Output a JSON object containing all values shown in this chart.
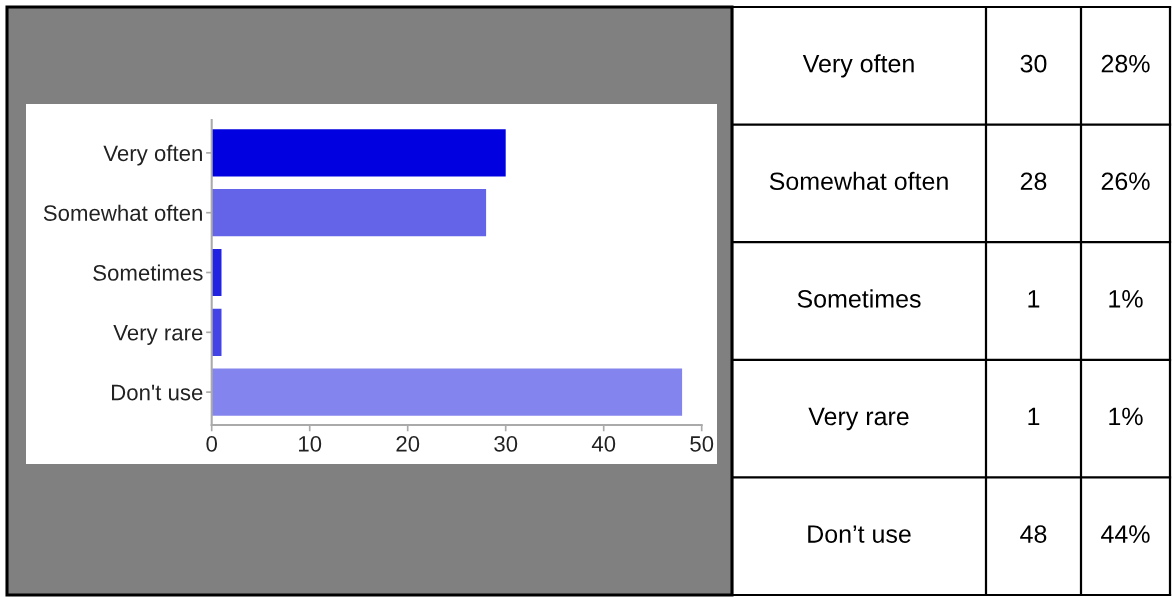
{
  "chart_data": [
    {
      "type": "bar",
      "orientation": "horizontal",
      "categories": [
        "Very often",
        "Somewhat often",
        "Sometimes",
        "Very rare",
        "Don't use"
      ],
      "values": [
        30,
        28,
        1,
        1,
        48
      ],
      "colors": [
        "#0000e0",
        "#6464e8",
        "#2222e2",
        "#4444e6",
        "#8484ee"
      ],
      "xlim": [
        0,
        50
      ],
      "xticks": [
        0,
        10,
        20,
        30,
        40,
        50
      ]
    },
    {
      "type": "other",
      "categories": [
        "Very often",
        "Somewhat often",
        "Sometimes",
        "Very rare",
        "Don’t use"
      ],
      "data_labels": true,
      "series": [
        {
          "values": [
            30,
            28,
            1,
            1,
            48
          ]
        },
        {
          "values": [
            28,
            26,
            1,
            1,
            44
          ],
          "value_labels": [
            "28%",
            "26%",
            "1%",
            "1%",
            "44%"
          ]
        }
      ]
    }
  ]
}
